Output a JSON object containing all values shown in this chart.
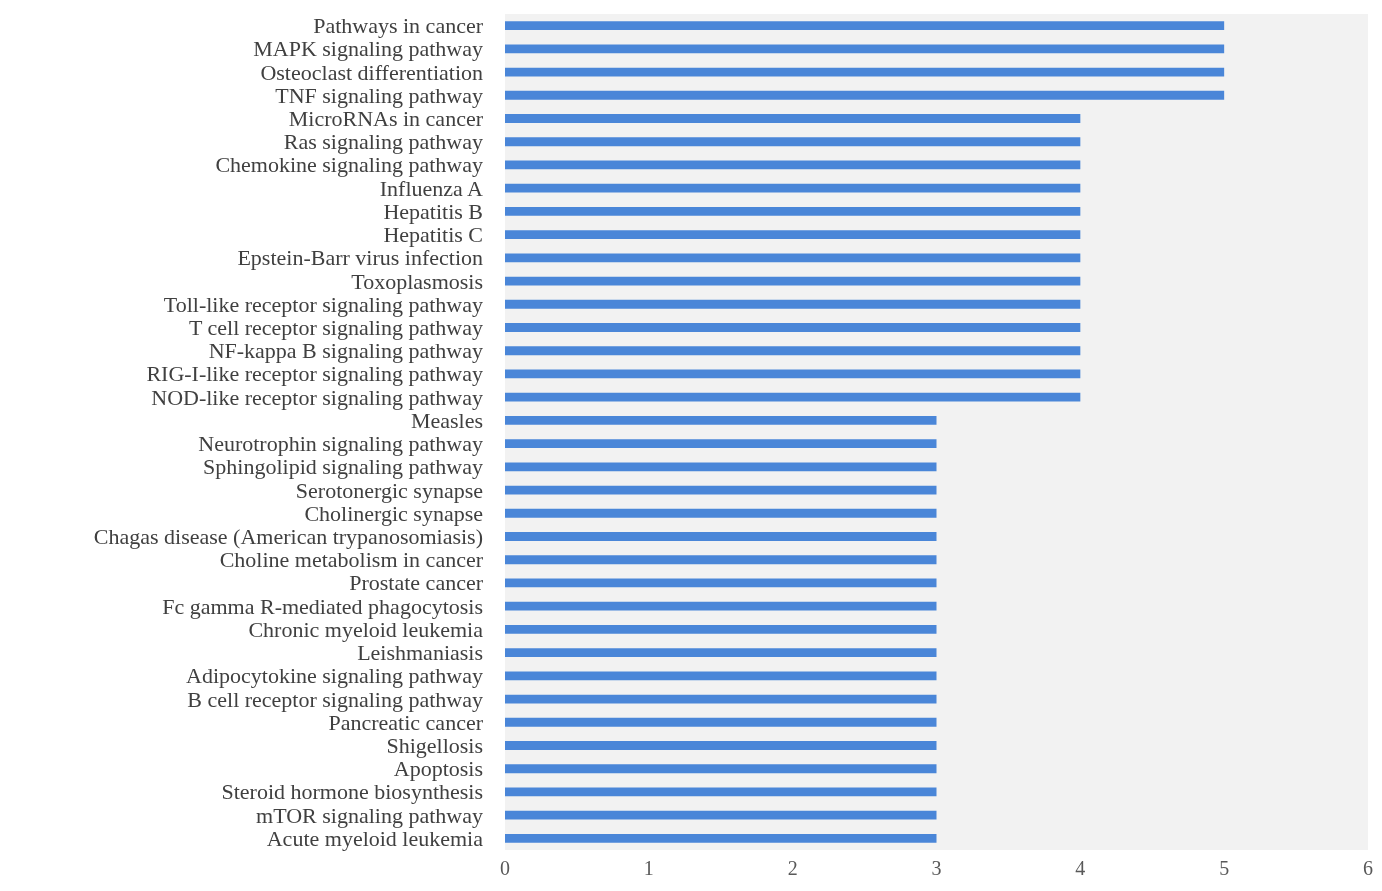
{
  "chart_data": {
    "type": "bar",
    "orientation": "horizontal",
    "categories": [
      "Pathways in cancer",
      "MAPK signaling pathway",
      "Osteoclast differentiation",
      "TNF signaling pathway",
      "MicroRNAs in cancer",
      "Ras signaling pathway",
      "Chemokine signaling pathway",
      "Influenza A",
      "Hepatitis B",
      "Hepatitis C",
      "Epstein-Barr virus infection",
      "Toxoplasmosis",
      "Toll-like receptor signaling pathway",
      "T cell receptor signaling pathway",
      "NF-kappa B signaling pathway",
      "RIG-I-like receptor signaling pathway",
      "NOD-like receptor signaling pathway",
      "Measles",
      "Neurotrophin signaling pathway",
      "Sphingolipid signaling pathway",
      "Serotonergic synapse",
      "Cholinergic synapse",
      "Chagas disease (American trypanosomiasis)",
      "Choline metabolism in cancer",
      "Prostate cancer",
      "Fc gamma R-mediated phagocytosis",
      "Chronic myeloid leukemia",
      "Leishmaniasis",
      "Adipocytokine signaling pathway",
      "B cell receptor signaling pathway",
      "Pancreatic cancer",
      "Shigellosis",
      "Apoptosis",
      "Steroid hormone biosynthesis",
      "mTOR signaling pathway",
      "Acute myeloid leukemia"
    ],
    "values": [
      5,
      5,
      5,
      5,
      4,
      4,
      4,
      4,
      4,
      4,
      4,
      4,
      4,
      4,
      4,
      4,
      4,
      3,
      3,
      3,
      3,
      3,
      3,
      3,
      3,
      3,
      3,
      3,
      3,
      3,
      3,
      3,
      3,
      3,
      3,
      3
    ],
    "color": "#4a86d8",
    "xlim": [
      0,
      6
    ],
    "xticks": [
      0,
      1,
      2,
      3,
      4,
      5,
      6
    ]
  }
}
